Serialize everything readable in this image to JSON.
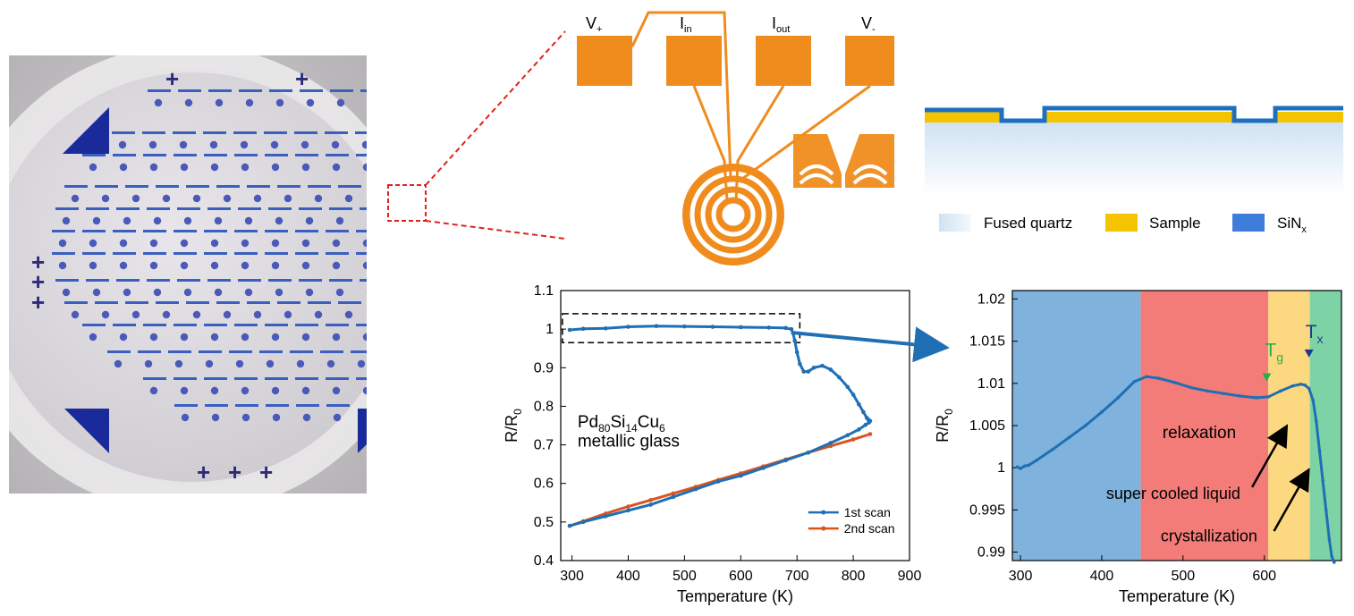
{
  "pad_labels": {
    "v_plus": "V",
    "v_plus_sub": "+",
    "i_in": "I",
    "i_in_sub": "in",
    "i_out": "I",
    "i_out_sub": "out",
    "v_minus": "V",
    "v_minus_sub": "-"
  },
  "colors": {
    "pad_orange": "#f08c1e",
    "sample_yellow": "#f5c400",
    "sin_blue": "#1f6fc0",
    "series1": "#1f6fb4",
    "series2": "#d9541e",
    "region_blue": "#7fb3dd",
    "region_red": "#f47c78",
    "region_yellow": "#fcd980",
    "region_green": "#7ed3a6",
    "tg_marker": "#22b14c",
    "tx_marker": "#203a8c"
  },
  "legend_layers": [
    {
      "label": "Fused quartz",
      "sub": ""
    },
    {
      "label": "Sample",
      "sub": ""
    },
    {
      "label": "SiN",
      "sub": "x"
    }
  ],
  "chart_data": [
    {
      "type": "line",
      "xlabel": "Temperature (K)",
      "ylabel_main": "R/R",
      "ylabel_sub": "0",
      "xlim": [
        280,
        900
      ],
      "ylim": [
        0.4,
        1.1
      ],
      "xticks": [
        300,
        400,
        500,
        600,
        700,
        800,
        900
      ],
      "yticks": [
        0.4,
        0.5,
        0.6,
        0.7,
        0.8,
        0.9,
        1,
        1.1
      ],
      "annotation_line1": {
        "a": "Pd",
        "a_sub": "80",
        "b": "Si",
        "b_sub": "14",
        "c": "Cu",
        "c_sub": "6"
      },
      "annotation_line2": "metallic glass",
      "legend": [
        "1st scan",
        "2nd scan"
      ],
      "series": [
        {
          "name": "1st scan",
          "x": [
            296,
            320,
            360,
            400,
            450,
            500,
            550,
            600,
            650,
            680,
            690,
            693,
            696,
            700,
            705,
            712,
            720,
            730,
            745,
            760,
            775,
            790,
            800,
            810,
            818,
            824,
            827,
            830,
            828,
            822,
            810,
            790,
            760,
            720,
            680,
            640,
            600,
            560,
            520,
            480,
            440,
            400,
            360,
            320,
            296
          ],
          "y": [
            0.998,
            1.001,
            1.002,
            1.006,
            1.008,
            1.007,
            1.006,
            1.005,
            1.004,
            1.003,
            1.0,
            0.99,
            0.97,
            0.94,
            0.91,
            0.89,
            0.89,
            0.9,
            0.905,
            0.895,
            0.875,
            0.85,
            0.83,
            0.805,
            0.785,
            0.77,
            0.765,
            0.762,
            0.758,
            0.752,
            0.74,
            0.725,
            0.705,
            0.68,
            0.66,
            0.64,
            0.62,
            0.605,
            0.585,
            0.565,
            0.545,
            0.53,
            0.515,
            0.5,
            0.49
          ]
        },
        {
          "name": "2nd scan",
          "x": [
            296,
            320,
            360,
            400,
            440,
            480,
            520,
            560,
            600,
            640,
            680,
            720,
            760,
            800,
            830
          ],
          "y": [
            0.49,
            0.502,
            0.522,
            0.54,
            0.557,
            0.574,
            0.591,
            0.609,
            0.626,
            0.644,
            0.662,
            0.68,
            0.697,
            0.714,
            0.728
          ]
        }
      ]
    },
    {
      "type": "line",
      "xlabel": "Temperature (K)",
      "ylabel_main": "R/R",
      "ylabel_sub": "0",
      "xlim": [
        290,
        695
      ],
      "ylim": [
        0.989,
        1.021
      ],
      "xticks": [
        300,
        400,
        500,
        600
      ],
      "yticks": [
        0.99,
        0.995,
        1,
        1.005,
        1.01,
        1.015,
        1.02
      ],
      "ytick_labels": [
        "0.99",
        "0.995",
        "1",
        "1.005",
        "1.01",
        "1.015",
        "1.02"
      ],
      "regions": [
        {
          "from": 290,
          "to": 448,
          "color": "region_blue"
        },
        {
          "from": 448,
          "to": 605,
          "color": "region_red"
        },
        {
          "from": 605,
          "to": 656,
          "color": "region_yellow"
        },
        {
          "from": 656,
          "to": 695,
          "color": "region_green"
        }
      ],
      "tg": {
        "x": 603,
        "y": 1.0094,
        "label": "T",
        "sub": "g"
      },
      "tx": {
        "x": 655,
        "y": 1.0118,
        "label": "T",
        "sub": "x"
      },
      "labels": {
        "relaxation": "relaxation",
        "scl": "super cooled liquid",
        "cryst": "crystallization"
      },
      "series": [
        {
          "name": "1st scan",
          "x": [
            296,
            300,
            305,
            310,
            320,
            340,
            360,
            380,
            400,
            420,
            440,
            455,
            470,
            490,
            510,
            530,
            550,
            570,
            590,
            605,
            620,
            635,
            645,
            650,
            655,
            660,
            664,
            668,
            672,
            676,
            680,
            683,
            686
          ],
          "y": [
            1.0001,
            0.9999,
            1.0002,
            1.0003,
            1.0009,
            1.0022,
            1.0036,
            1.005,
            1.0066,
            1.0083,
            1.0102,
            1.0108,
            1.0106,
            1.0101,
            1.0095,
            1.0091,
            1.0088,
            1.0085,
            1.0083,
            1.0084,
            1.0091,
            1.0097,
            1.0099,
            1.0098,
            1.0094,
            1.008,
            1.0055,
            1.002,
            0.9985,
            0.995,
            0.9915,
            0.9895,
            0.9888
          ]
        }
      ]
    }
  ]
}
